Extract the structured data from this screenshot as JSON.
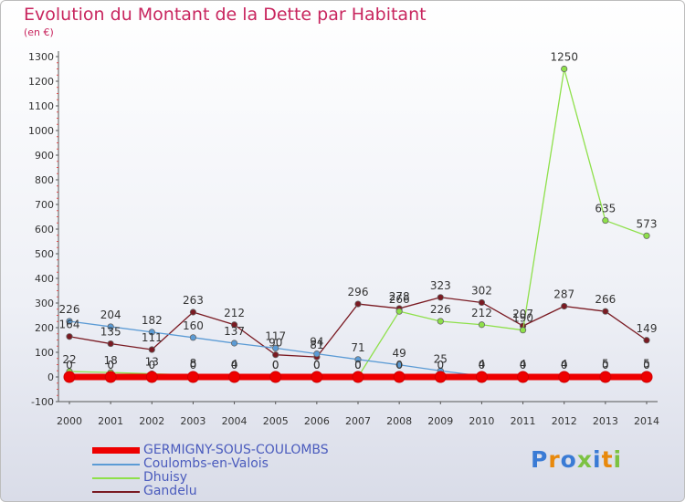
{
  "title": "Evolution du Montant de la Dette par Habitant",
  "subtitle": "(en €)",
  "logo_text": "Proxiti",
  "colors": {
    "title": "#c8255e",
    "legend_text": "#4a5bbd",
    "axis": "#555555",
    "grid": "#9a9a9a"
  },
  "chart_data": {
    "type": "line",
    "title": "Evolution du Montant de la Dette par Habitant",
    "subtitle": "(en €)",
    "xlabel": "",
    "ylabel": "",
    "x": [
      2000,
      2001,
      2002,
      2003,
      2004,
      2005,
      2006,
      2007,
      2008,
      2009,
      2010,
      2011,
      2012,
      2013,
      2014
    ],
    "ylim": [
      -100,
      1300
    ],
    "yticks": [
      -100,
      0,
      100,
      200,
      300,
      400,
      500,
      600,
      700,
      800,
      900,
      1000,
      1100,
      1200,
      1300
    ],
    "grid": false,
    "legend_position": "bottom-left",
    "series": [
      {
        "name": "GERMIGNY-SOUS-COULOMBS",
        "color": "#ee0000",
        "values": [
          0,
          0,
          0,
          0,
          0,
          0,
          0,
          0,
          0,
          0,
          0,
          0,
          0,
          0,
          0
        ],
        "labels": [
          "0",
          "0",
          "0",
          "0",
          "0",
          "0",
          "0",
          "0",
          "0",
          "0",
          "0",
          "0",
          "0",
          "0",
          "0"
        ]
      },
      {
        "name": "Coulombs-en-Valois",
        "color": "#5b9bd5",
        "values": [
          226,
          204,
          182,
          160,
          137,
          117,
          94,
          71,
          49,
          25,
          4,
          4,
          4,
          5,
          5
        ],
        "labels": [
          "226",
          "204",
          "182",
          "160",
          "137",
          "117",
          "94",
          "71",
          "49",
          "25",
          "4",
          "4",
          "4",
          "5",
          "5"
        ]
      },
      {
        "name": "Dhuisy",
        "color": "#8ee04a",
        "values": [
          22,
          18,
          13,
          8,
          4,
          0,
          0,
          0,
          266,
          226,
          212,
          190,
          1250,
          635,
          573
        ],
        "labels": [
          "22",
          "18",
          "13",
          "8",
          "4",
          "0",
          "0",
          "0",
          "266",
          "226",
          "212",
          "190",
          "1250",
          "635",
          "573"
        ]
      },
      {
        "name": "Gandelu",
        "color": "#7a1a22",
        "values": [
          164,
          135,
          111,
          263,
          212,
          90,
          81,
          296,
          278,
          323,
          302,
          207,
          287,
          266,
          149
        ],
        "labels": [
          "164",
          "135",
          "111",
          "263",
          "212",
          "90",
          "81",
          "296",
          "278",
          "323",
          "302",
          "207",
          "287",
          "266",
          "149"
        ]
      }
    ]
  }
}
